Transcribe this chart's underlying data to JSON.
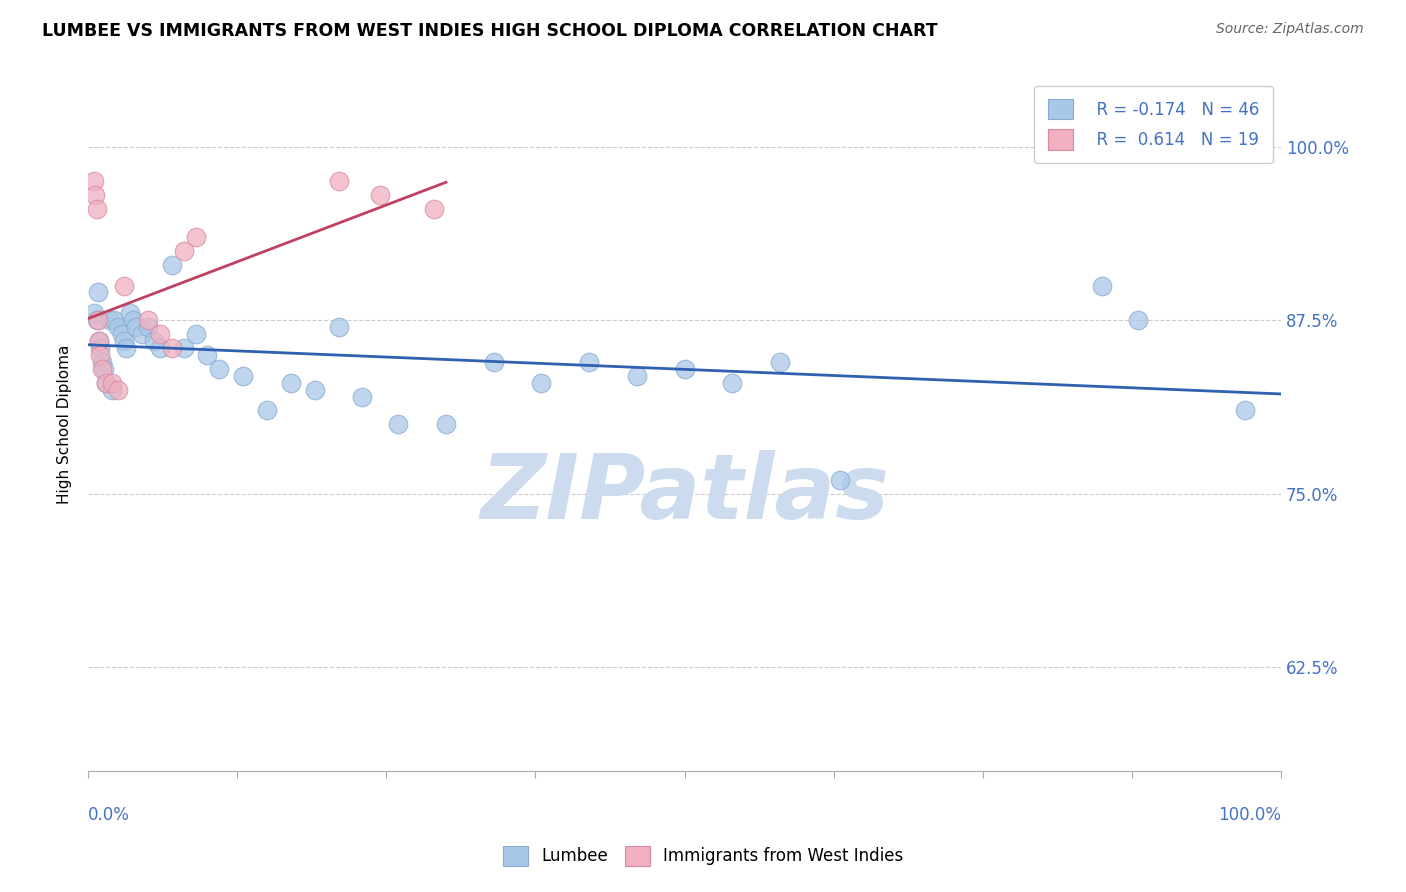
{
  "title": "LUMBEE VS IMMIGRANTS FROM WEST INDIES HIGH SCHOOL DIPLOMA CORRELATION CHART",
  "source": "Source: ZipAtlas.com",
  "ylabel": "High School Diploma",
  "right_yticks": [
    0.625,
    0.75,
    0.875,
    1.0
  ],
  "right_yticklabels": [
    "62.5%",
    "75.0%",
    "87.5%",
    "100.0%"
  ],
  "legend_blue_r": "R = -0.174",
  "legend_blue_n": "N = 46",
  "legend_pink_r": "R =  0.614",
  "legend_pink_n": "N = 19",
  "blue_color": "#a8c8e8",
  "blue_edge_color": "#88aad0",
  "blue_line_color": "#3060b0",
  "pink_color": "#f0b0c0",
  "pink_edge_color": "#d888a0",
  "pink_line_color": "#c04060",
  "watermark": "ZIPatlas",
  "watermark_color": "#ccdcee",
  "blue_x": [
    0.005,
    0.007,
    0.008,
    0.009,
    0.01,
    0.012,
    0.013,
    0.015,
    0.018,
    0.02,
    0.022,
    0.025,
    0.028,
    0.03,
    0.032,
    0.035,
    0.038,
    0.04,
    0.045,
    0.05,
    0.055,
    0.06,
    0.07,
    0.08,
    0.09,
    0.1,
    0.11,
    0.13,
    0.15,
    0.17,
    0.19,
    0.21,
    0.23,
    0.26,
    0.3,
    0.34,
    0.38,
    0.42,
    0.46,
    0.5,
    0.54,
    0.58,
    0.63,
    0.85,
    0.88,
    0.97
  ],
  "blue_y": [
    0.88,
    0.875,
    0.895,
    0.86,
    0.855,
    0.845,
    0.84,
    0.83,
    0.875,
    0.825,
    0.875,
    0.87,
    0.865,
    0.86,
    0.855,
    0.88,
    0.875,
    0.87,
    0.865,
    0.87,
    0.86,
    0.855,
    0.915,
    0.855,
    0.865,
    0.85,
    0.84,
    0.835,
    0.81,
    0.83,
    0.825,
    0.87,
    0.82,
    0.8,
    0.8,
    0.845,
    0.83,
    0.845,
    0.835,
    0.84,
    0.83,
    0.845,
    0.76,
    0.9,
    0.875,
    0.81
  ],
  "pink_x": [
    0.005,
    0.006,
    0.007,
    0.008,
    0.009,
    0.01,
    0.012,
    0.015,
    0.02,
    0.025,
    0.03,
    0.05,
    0.06,
    0.07,
    0.08,
    0.09,
    0.21,
    0.245,
    0.29
  ],
  "pink_y": [
    0.975,
    0.965,
    0.955,
    0.875,
    0.86,
    0.85,
    0.84,
    0.83,
    0.83,
    0.825,
    0.9,
    0.875,
    0.865,
    0.855,
    0.925,
    0.935,
    0.975,
    0.965,
    0.955
  ],
  "xlim": [
    0.0,
    1.0
  ],
  "ylim": [
    0.55,
    1.05
  ],
  "xticks": [
    0.0,
    0.125,
    0.25,
    0.375,
    0.5,
    0.625,
    0.75,
    0.875,
    1.0
  ]
}
